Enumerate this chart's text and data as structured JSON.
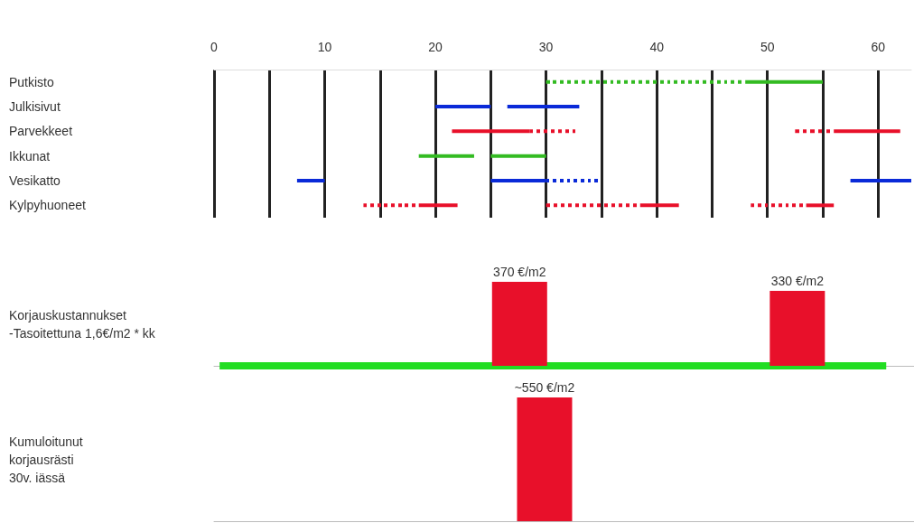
{
  "chart_data": [
    {
      "type": "bar",
      "orientation": "horizontal",
      "categories": [
        "Putkisto",
        "Julkisivut",
        "Parvekkeet",
        "Ikkunat",
        "Vesikatto",
        "Kylpyhuoneet"
      ],
      "series": [
        {
          "line_style": "solid",
          "base": [
            48,
            20,
            21.5,
            18.5,
            7.5,
            18.5
          ],
          "values": [
            7,
            5,
            7,
            5,
            2.5,
            3.5
          ],
          "colors": [
            "#33bb22",
            "#0a2ad8",
            "#e8102a",
            "#33bb22",
            "#0a2ad8",
            "#e8102a"
          ]
        },
        {
          "line_style": "solid",
          "base": [
            null,
            26.5,
            56,
            25,
            25,
            38.5
          ],
          "values": [
            null,
            6.5,
            6,
            5,
            5,
            3.5
          ],
          "colors": [
            null,
            "#0a2ad8",
            "#e8102a",
            "#33bb22",
            "#0a2ad8",
            "#e8102a"
          ]
        },
        {
          "line_style": "solid",
          "base": [
            null,
            null,
            null,
            null,
            57.5,
            53.5
          ],
          "values": [
            null,
            null,
            null,
            null,
            5.5,
            2.5
          ],
          "colors": [
            null,
            null,
            null,
            null,
            "#0a2ad8",
            "#e8102a"
          ]
        },
        {
          "line_style": "dotted",
          "base": [
            30,
            null,
            28.5,
            null,
            30,
            13.5
          ],
          "values": [
            18,
            null,
            4.5,
            null,
            5,
            5
          ],
          "colors": [
            "#33bb22",
            null,
            "#e8102a",
            null,
            "#0a2ad8",
            "#e8102a"
          ]
        },
        {
          "line_style": "dotted",
          "base": [
            null,
            null,
            52.5,
            null,
            null,
            30
          ],
          "values": [
            null,
            null,
            3.5,
            null,
            null,
            8.5
          ],
          "colors": [
            null,
            null,
            "#e8102a",
            null,
            null,
            "#e8102a"
          ]
        },
        {
          "line_style": "dotted",
          "base": [
            null,
            null,
            null,
            null,
            null,
            48.5
          ],
          "values": [
            null,
            null,
            null,
            null,
            null,
            5
          ],
          "colors": [
            null,
            null,
            null,
            null,
            null,
            "#e8102a"
          ]
        }
      ],
      "xlim": [
        0,
        63
      ],
      "xticks": [
        0,
        {
          "value": 5,
          "label": null
        },
        10,
        {
          "value": 15,
          "label": null
        },
        20,
        {
          "value": 25,
          "label": null
        },
        30,
        {
          "value": 35,
          "label": null
        },
        40,
        {
          "value": 45,
          "label": null
        },
        50,
        {
          "value": 55,
          "label": null
        },
        60
      ],
      "grid": "x"
    },
    {
      "type": "bar",
      "ylabel": "Korjauskustannukset\n-Tasoitettuna 1,6€/m2 * kk",
      "xlim": [
        0,
        63
      ],
      "tick_labels": false,
      "series": [
        {
          "type": "bar",
          "x": [
            27.5,
            52.5
          ],
          "values": [
            370,
            330
          ],
          "value_labels": [
            "370 €/m2",
            "330 €/m2"
          ],
          "color": "#e8102a"
        },
        {
          "type": "line",
          "x": [
            0.5,
            60.5
          ],
          "values": [
            0,
            0
          ],
          "color": "#22dd22"
        }
      ]
    },
    {
      "type": "bar",
      "ylabel": "Kumuloitunut\nkorjausrästi\n30v. iässä",
      "xlim": [
        0,
        63
      ],
      "ylim": [
        0,
        550
      ],
      "tick_labels": false,
      "x": [
        29.75
      ],
      "values": [
        550
      ],
      "value_labels": [
        "~550 €/m2"
      ],
      "color": "#e8102a"
    }
  ]
}
